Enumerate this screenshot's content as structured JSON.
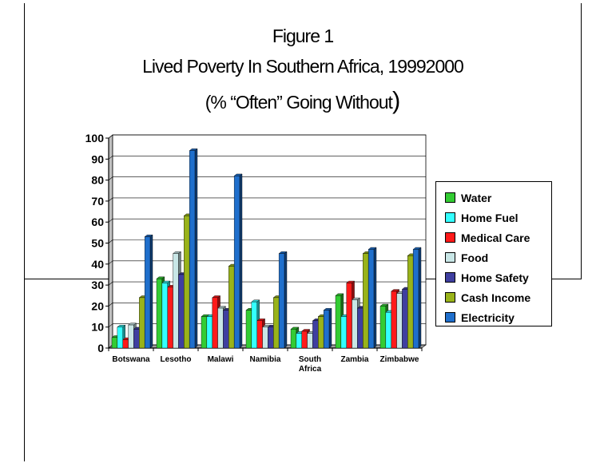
{
  "chart_data": {
    "type": "bar",
    "title": [
      "Figure 1",
      "Lived Poverty In Southern Africa, 1999",
      "2000",
      "(% “Often” Going Without",
      ")"
    ],
    "xlabel": "",
    "ylabel": "",
    "ylim": [
      0,
      100
    ],
    "yticks": [
      "0",
      "10",
      "20",
      "30",
      "40",
      "50",
      "60",
      "70",
      "80",
      "90",
      "100"
    ],
    "grid": true,
    "legend_position": "right",
    "categories": [
      "Botswana",
      "Lesotho",
      "Malawi",
      "Namibia",
      "South Africa",
      "Zambia",
      "Zimbabwe"
    ],
    "series": [
      {
        "name": "Water",
        "color": "#33cc33",
        "values": [
          5,
          33,
          15,
          18,
          9,
          25,
          20
        ]
      },
      {
        "name": "Home Fuel",
        "color": "#33ffff",
        "values": [
          10,
          31,
          15,
          22,
          7,
          15,
          17
        ]
      },
      {
        "name": "Medical Care",
        "color": "#ff1a1a",
        "values": [
          4,
          29,
          24,
          13,
          8,
          31,
          27
        ]
      },
      {
        "name": "Food",
        "color": "#c8e6e6",
        "values": [
          11,
          45,
          19,
          10,
          7,
          23,
          26
        ]
      },
      {
        "name": "Home Safety",
        "color": "#3f3fa0",
        "values": [
          9,
          35,
          18,
          10,
          13,
          19,
          28
        ]
      },
      {
        "name": "Cash Income",
        "color": "#99b31a",
        "values": [
          24,
          63,
          39,
          24,
          15,
          45,
          44
        ]
      },
      {
        "name": "Electricity",
        "color": "#1f6fcc",
        "values": [
          53,
          94,
          82,
          45,
          18,
          47,
          47
        ]
      }
    ]
  }
}
